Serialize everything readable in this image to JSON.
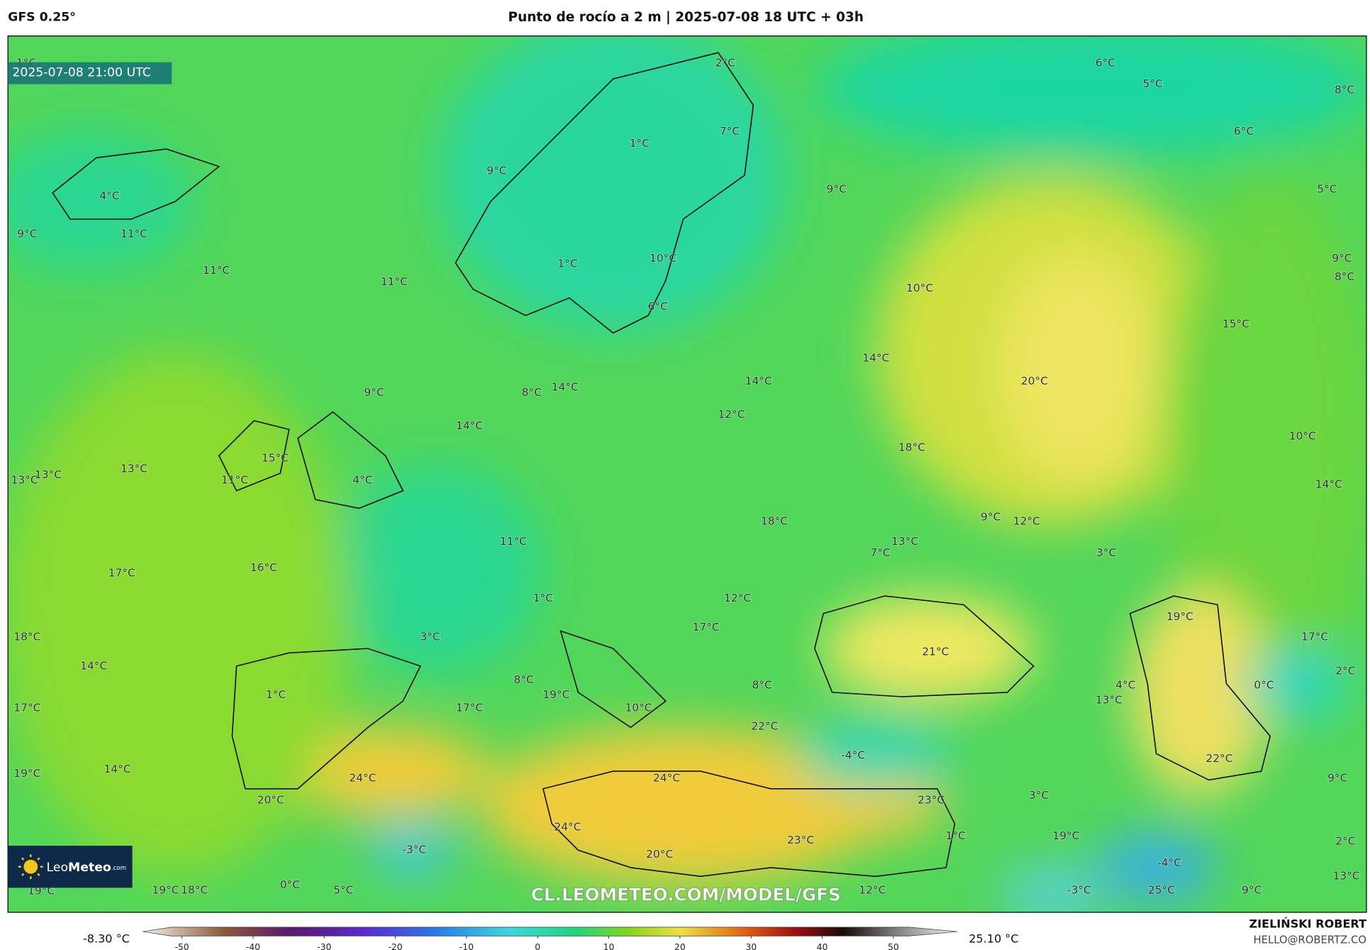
{
  "header": {
    "model": "GFS 0.25°",
    "title": "Punto de rocío a 2 m | 2025-07-08 18 UTC + 03h"
  },
  "timestamp": "2025-07-08 21:00 UTC",
  "labels": [
    "1°C",
    "2°C",
    "6°C",
    "5°C",
    "8°C",
    "1°C",
    "7°C",
    "6°C",
    "9°C",
    "4°C",
    "9°C",
    "5°C",
    "9°C",
    "11°C",
    "11°C",
    "1°C",
    "10°C",
    "9°C",
    "8°C",
    "11°C",
    "10°C",
    "6°C",
    "15°C",
    "14°C",
    "20°C",
    "9°C",
    "8°C",
    "14°C",
    "14°C",
    "12°C",
    "14°C",
    "18°C",
    "10°C",
    "15°C",
    "13°C",
    "13°C",
    "13°C",
    "11°C",
    "4°C",
    "14°C",
    "18°C",
    "9°C",
    "12°C",
    "11°C",
    "7°C",
    "13°C",
    "3°C",
    "17°C",
    "16°C",
    "1°C",
    "12°C",
    "19°C",
    "18°C",
    "3°C",
    "17°C",
    "21°C",
    "17°C",
    "14°C",
    "2°C",
    "8°C",
    "19°C",
    "8°C",
    "4°C",
    "0°C",
    "1°C",
    "13°C",
    "17°C",
    "17°C",
    "10°C",
    "22°C",
    "-4°C",
    "22°C",
    "19°C",
    "14°C",
    "24°C",
    "24°C",
    "9°C",
    "20°C",
    "23°C",
    "3°C",
    "24°C",
    "23°C",
    "1°C",
    "19°C",
    "2°C",
    "-3°C",
    "20°C",
    "-4°C",
    "13°C",
    "19°C",
    "19°C",
    "18°C",
    "0°C",
    "5°C",
    "12°C",
    "-3°C",
    "25°C",
    "9°C"
  ],
  "logo": {
    "leo": "Leo",
    "meteo": "Meteo",
    "domain": ".com"
  },
  "watermark": "CL.LEOMETEO.COM/MODEL/GFS",
  "colorbar": {
    "min_label": "-8.30 °C",
    "max_label": "25.10 °C",
    "lim": [
      -55.5,
      59
    ],
    "ticks": [
      -50,
      -40,
      -30,
      -20,
      -10,
      0,
      10,
      20,
      30,
      40,
      50
    ]
  },
  "credit": {
    "name": "ZIELIŃSKI ROBERT",
    "email": "HELLO@ROBERTZ.CO"
  }
}
